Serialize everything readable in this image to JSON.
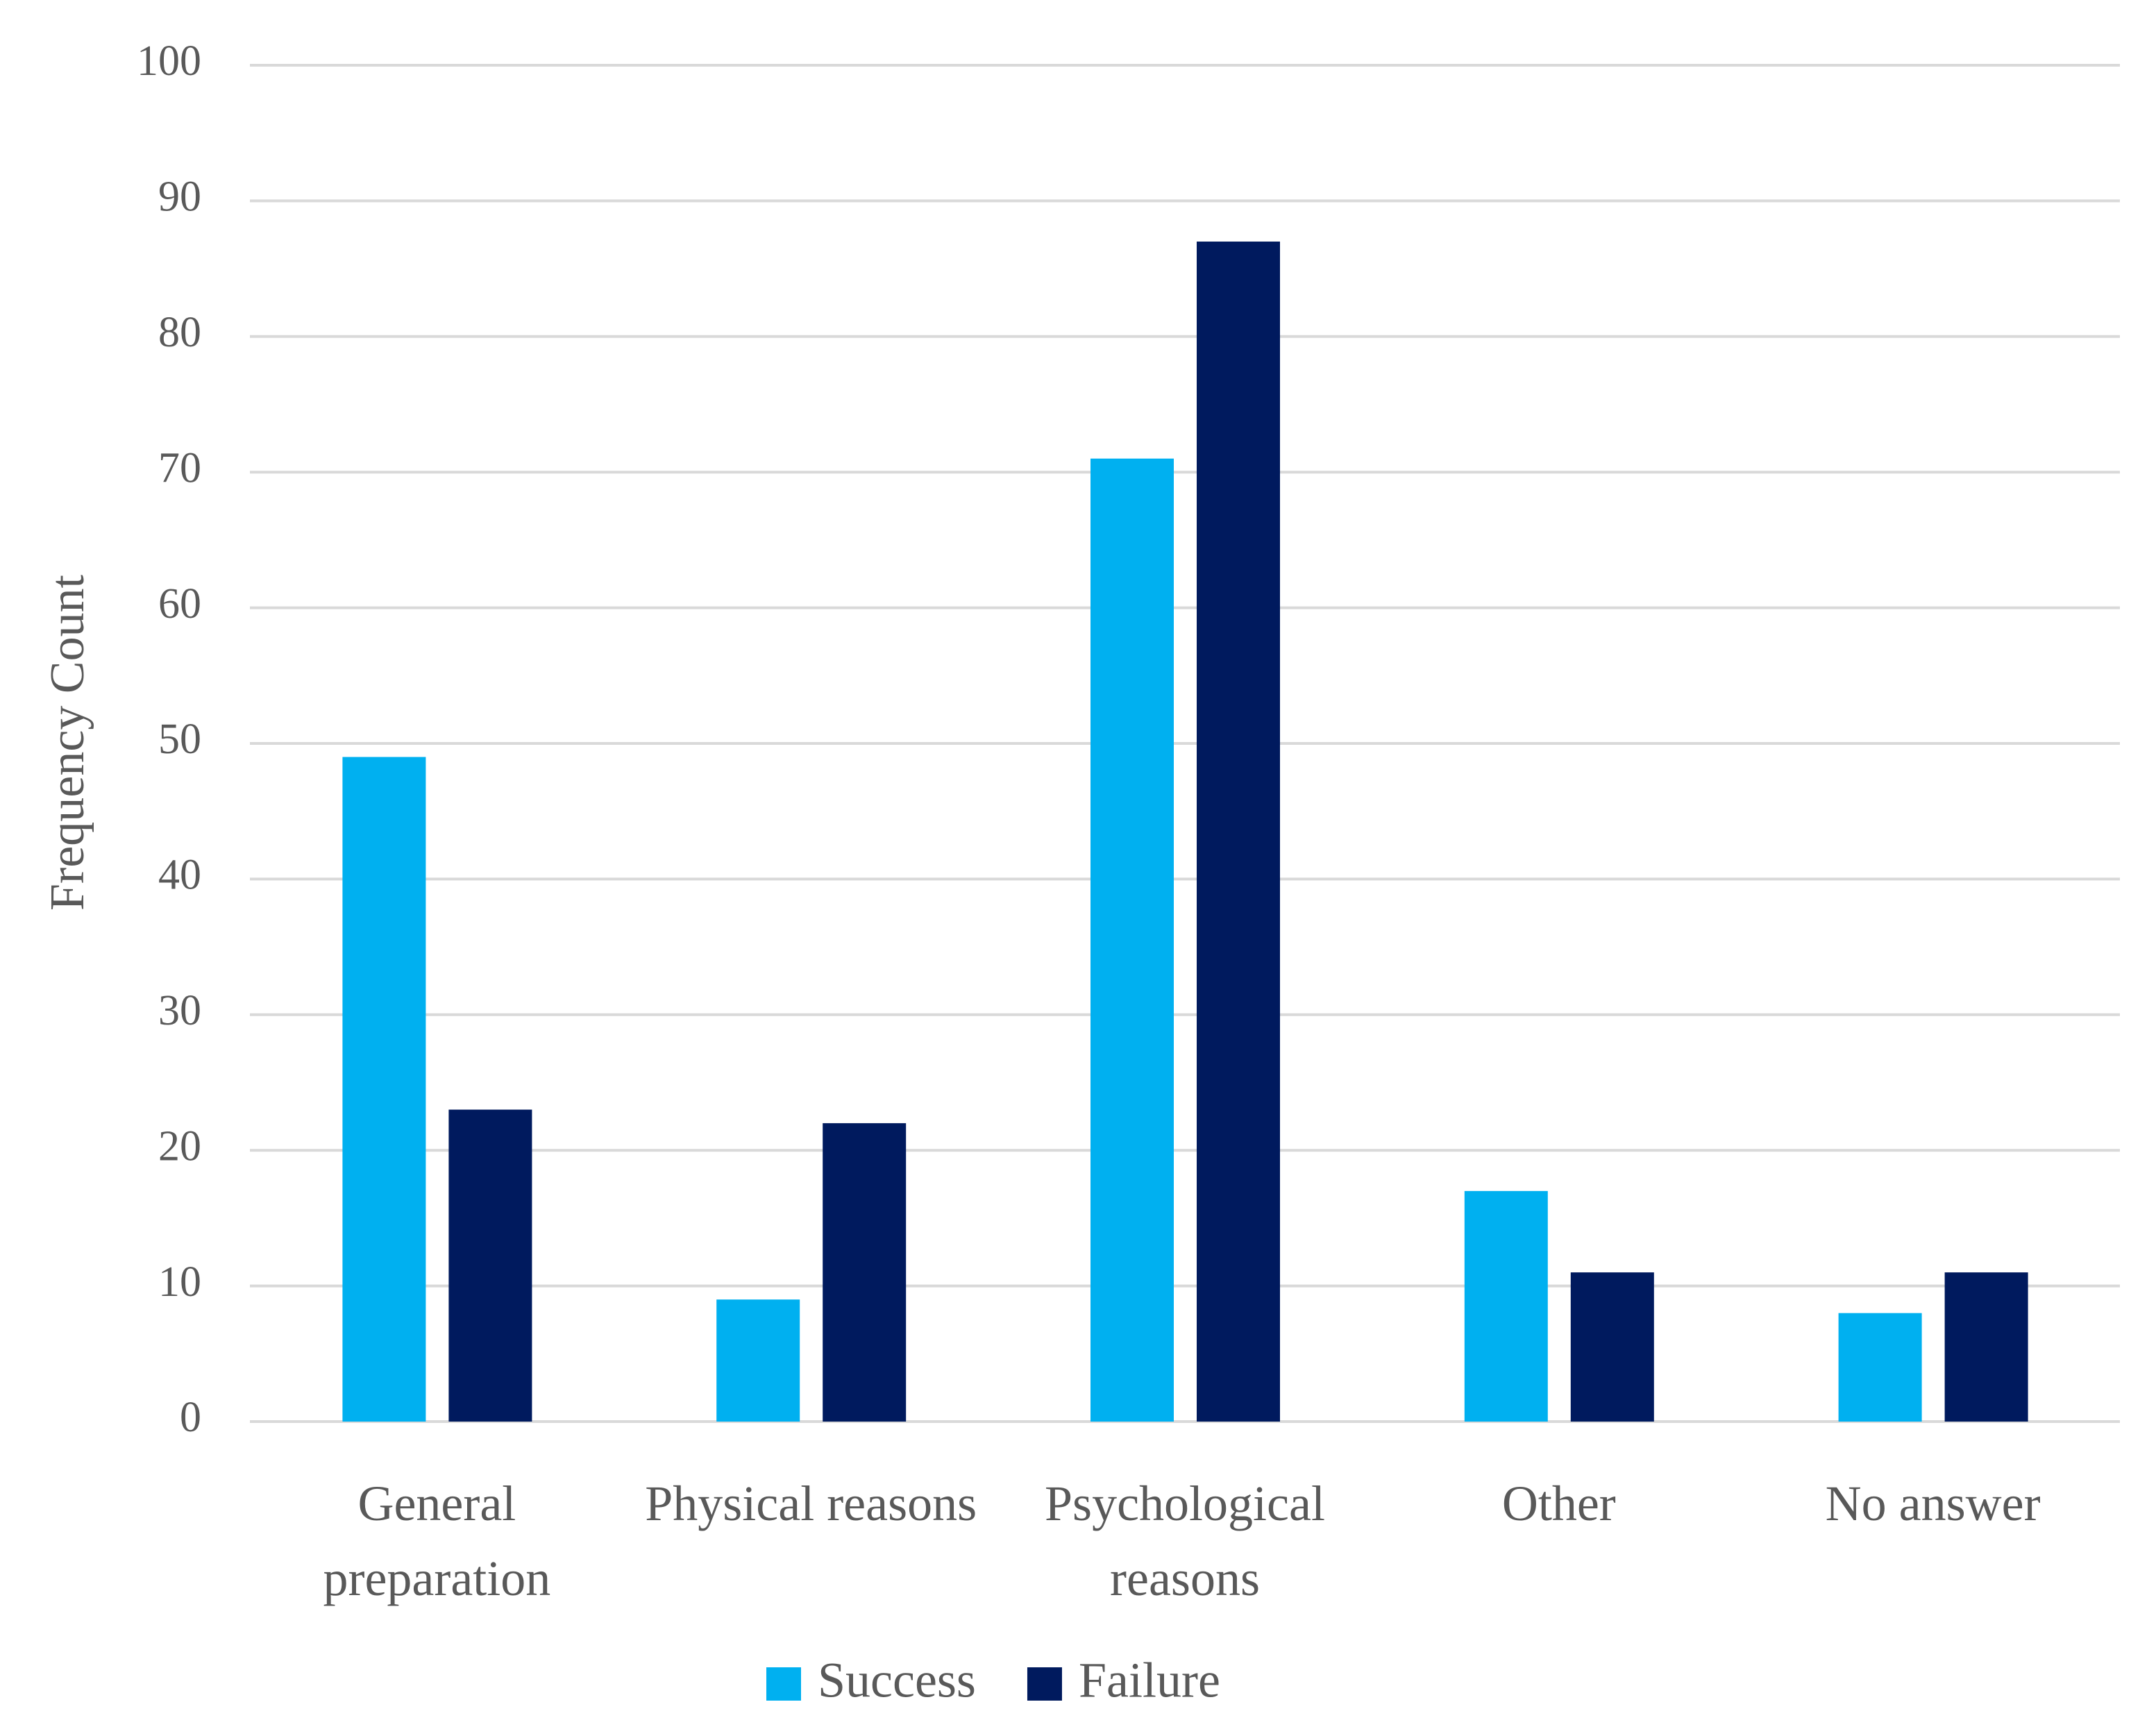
{
  "chart_data": {
    "type": "bar",
    "y_label": "Frequency Count",
    "categories": [
      "General preparation",
      "Physical reasons",
      "Psychological reasons",
      "Other",
      "No answer"
    ],
    "series": [
      {
        "name": "Success",
        "color": "#00b0f0",
        "values": [
          49,
          9,
          71,
          17,
          8
        ]
      },
      {
        "name": "Failure",
        "color": "#001a5e",
        "values": [
          23,
          22,
          87,
          11,
          11
        ]
      }
    ],
    "ylim": [
      0,
      100
    ],
    "yticks": [
      0,
      10,
      20,
      30,
      40,
      50,
      60,
      70,
      80,
      90,
      100
    ],
    "grid": true
  }
}
